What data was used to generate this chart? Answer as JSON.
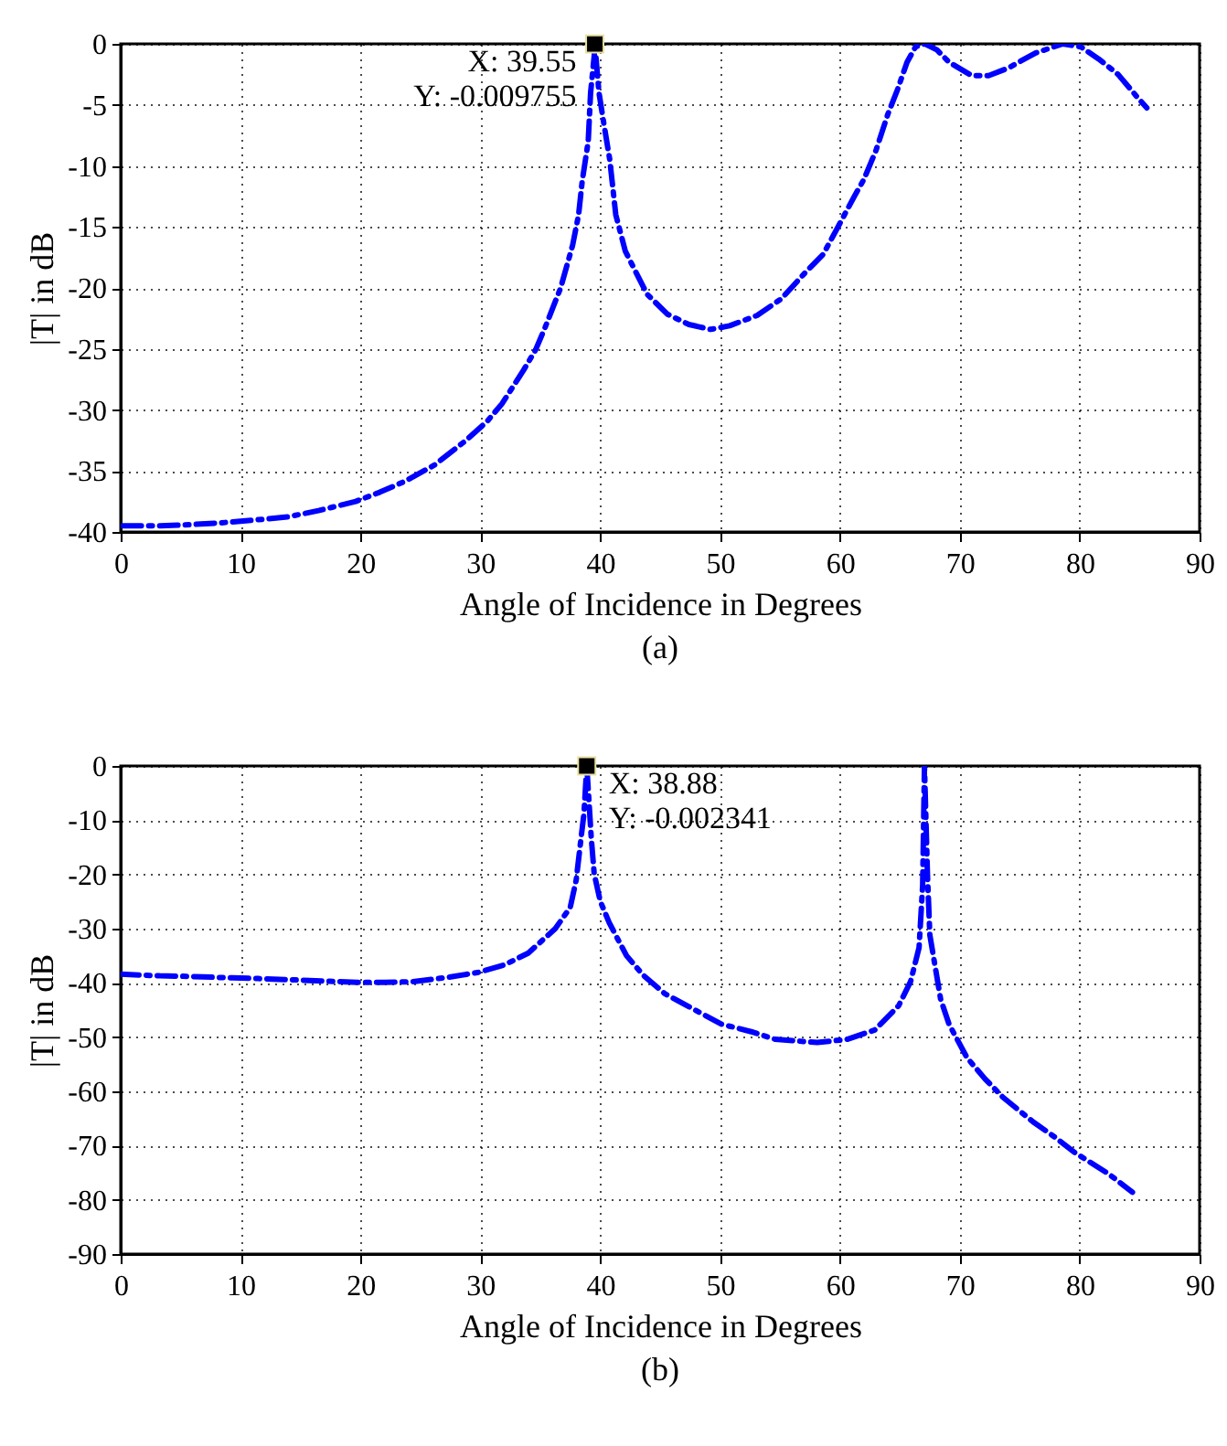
{
  "chart_data": [
    {
      "type": "line",
      "xlabel": "Angle of Incidence in Degrees",
      "ylabel": "|T| in dB",
      "xlim": [
        0,
        90
      ],
      "ylim": [
        -40,
        0
      ],
      "xticks": [
        0,
        10,
        20,
        30,
        40,
        50,
        60,
        70,
        80,
        90
      ],
      "yticks": [
        0,
        -5,
        -10,
        -15,
        -20,
        -25,
        -30,
        -35,
        -40
      ],
      "grid": true,
      "line_style": "dashed",
      "marker": "none",
      "annotations": [
        {
          "text": "X: 39.55\nY: -0.009755",
          "x": 39.55,
          "y": -0.009755
        },
        "(a)"
      ],
      "series": [
        {
          "color": "#0000ff",
          "x": [
            0.2,
            3.3,
            5.8,
            8.4,
            11.4,
            14,
            16.5,
            19.6,
            21.6,
            23.7,
            26.2,
            28.8,
            30.6,
            31.8,
            33.6,
            34.6,
            35.4,
            36.7,
            37.7,
            38.2,
            38.5,
            39,
            39.2,
            39.5,
            39.55,
            39.9,
            40.3,
            40.8,
            41.3,
            42.1,
            43.9,
            45.6,
            47.4,
            49.2,
            50.8,
            53.1,
            55.1,
            57.1,
            58.6,
            59.7,
            61.2,
            62,
            63,
            64,
            64.8,
            65.6,
            66.3,
            67.1,
            68.1,
            69.1,
            71,
            72.4,
            74,
            76.3,
            78.6,
            80.1,
            81.6,
            83.2,
            84.7,
            85.6
          ],
          "values": [
            -39.5,
            -39.5,
            -39.4,
            -39.25,
            -39,
            -38.75,
            -38.25,
            -37.5,
            -36.75,
            -35.85,
            -34.5,
            -32.5,
            -30.9,
            -29.5,
            -26.75,
            -25.1,
            -23.25,
            -20,
            -16.5,
            -14,
            -11.25,
            -8,
            -4,
            -1,
            -0.009755,
            -4,
            -6.5,
            -9.5,
            -14,
            -17,
            -20.5,
            -22.15,
            -23,
            -23.4,
            -23.1,
            -22.25,
            -20.9,
            -18.75,
            -17.25,
            -15.25,
            -12.5,
            -11.1,
            -8.75,
            -5.75,
            -3.75,
            -1.5,
            -0.25,
            0,
            -0.5,
            -1.5,
            -2.6,
            -2.6,
            -2,
            -0.75,
            0,
            -0.25,
            -1.25,
            -2.5,
            -4.25,
            -5.25
          ]
        }
      ]
    },
    {
      "type": "line",
      "xlabel": "Angle of Incidence in Degrees",
      "ylabel": "|T| in dB",
      "xlim": [
        0,
        90
      ],
      "ylim": [
        -90,
        0
      ],
      "xticks": [
        0,
        10,
        20,
        30,
        40,
        50,
        60,
        70,
        80,
        90
      ],
      "yticks": [
        0,
        -10,
        -20,
        -30,
        -40,
        -50,
        -60,
        -70,
        -80,
        -90
      ],
      "grid": true,
      "line_style": "dashed",
      "marker": "none",
      "annotations": [
        {
          "text": "X: 38.88\nY: -0.002341",
          "x": 38.88,
          "y": -0.002341
        },
        "(b)"
      ],
      "series": [
        {
          "color": "#0000ff",
          "x": [
            0,
            3.25,
            5.75,
            8.25,
            11.5,
            14,
            16.25,
            19.75,
            22,
            24.25,
            27.25,
            29.75,
            32,
            34,
            36.25,
            37.5,
            38,
            38.35,
            38.65,
            38.88,
            39.25,
            39.5,
            40,
            40.75,
            42.2,
            43.6,
            45.4,
            50.1,
            52.6,
            54.6,
            58.1,
            60.6,
            62.9,
            64.9,
            65.9,
            66.6,
            66.9,
            67,
            67.05,
            67.3,
            67.5,
            68.4,
            69.1,
            70.6,
            72.1,
            73.6,
            76.1,
            77.9,
            79.6,
            82.4,
            84.4
          ],
          "values": [
            -38.4,
            -38.7,
            -38.8,
            -39,
            -39.2,
            -39.4,
            -39.6,
            -39.9,
            -39.9,
            -39.8,
            -39,
            -38.1,
            -36.7,
            -34.5,
            -30,
            -26.1,
            -21,
            -14.3,
            -8.7,
            -0.002341,
            -13.1,
            -19.9,
            -24.9,
            -28.9,
            -35,
            -38.6,
            -42,
            -47.6,
            -49,
            -50.4,
            -51,
            -50.4,
            -48.7,
            -44.2,
            -39.7,
            -33.5,
            -22,
            -7.6,
            0,
            -20,
            -31.2,
            -43,
            -47.6,
            -53.8,
            -57.7,
            -61.1,
            -65.6,
            -68.4,
            -71.3,
            -75.2,
            -78.6
          ]
        }
      ]
    }
  ]
}
